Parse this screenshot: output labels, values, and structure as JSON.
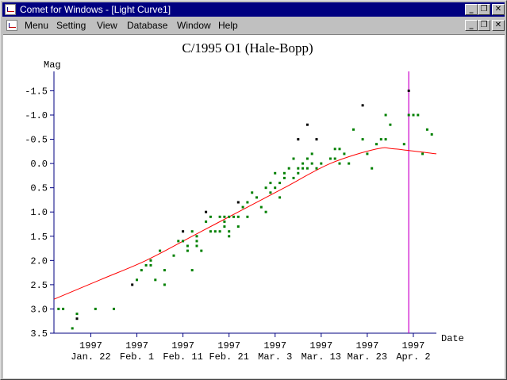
{
  "window": {
    "title": "Comet for Windows - [Light Curve1]",
    "menu": [
      "Menu",
      "Setting",
      "View",
      "Database",
      "Window",
      "Help"
    ]
  },
  "colors": {
    "curve": "#ff0000",
    "marker": "#cc00cc",
    "points_green": "#008000",
    "points_black": "#000000",
    "axis": "#000080"
  },
  "chart_data": {
    "type": "scatter",
    "title": "C/1995 O1 (Hale-Bopp)",
    "ylabel": "Mag",
    "xlabel": "Date",
    "y_inverted": true,
    "ylim": [
      3.5,
      -1.9
    ],
    "xlim": [
      "1997-01-14",
      "1997-04-07"
    ],
    "y_ticks": [
      -1.5,
      -1.0,
      -0.5,
      0.0,
      0.5,
      1.0,
      1.5,
      2.0,
      2.5,
      3.0,
      3.5
    ],
    "y_tick_labels": [
      "-1.5",
      "-1.0",
      "-0.5",
      "0.0",
      "0.5",
      "1.0",
      "1.5",
      "2.0",
      "2.5",
      "3.0",
      "3.5"
    ],
    "x_ticks": [
      "1997-01-22",
      "1997-02-01",
      "1997-02-11",
      "1997-02-21",
      "1997-03-03",
      "1997-03-13",
      "1997-03-23",
      "1997-04-02"
    ],
    "x_tick_year_labels": [
      "1997",
      "1997",
      "1997",
      "1997",
      "1997",
      "1997",
      "1997",
      "1997"
    ],
    "x_tick_date_labels": [
      "Jan. 22",
      "Feb. 1",
      "Feb. 11",
      "Feb. 21",
      "Mar. 3",
      "Mar. 13",
      "Mar. 23",
      "Apr. 2"
    ],
    "marker_date": "1997-04-01",
    "series": [
      {
        "color": "green",
        "points": [
          [
            "1997-01-15",
            3.0
          ],
          [
            "1997-01-16",
            3.0
          ],
          [
            "1997-01-18",
            3.4
          ],
          [
            "1997-01-19",
            3.1
          ],
          [
            "1997-01-23",
            3.0
          ],
          [
            "1997-01-27",
            3.0
          ],
          [
            "1997-02-01",
            2.4
          ],
          [
            "1997-02-02",
            2.2
          ],
          [
            "1997-02-03",
            2.1
          ],
          [
            "1997-02-04",
            2.1
          ],
          [
            "1997-02-04",
            2.0
          ],
          [
            "1997-02-05",
            2.4
          ],
          [
            "1997-02-06",
            1.8
          ],
          [
            "1997-02-07",
            2.5
          ],
          [
            "1997-02-07",
            2.2
          ],
          [
            "1997-02-09",
            1.9
          ],
          [
            "1997-02-10",
            1.6
          ],
          [
            "1997-02-11",
            1.6
          ],
          [
            "1997-02-12",
            1.8
          ],
          [
            "1997-02-12",
            1.7
          ],
          [
            "1997-02-13",
            2.2
          ],
          [
            "1997-02-13",
            1.4
          ],
          [
            "1997-02-14",
            1.5
          ],
          [
            "1997-02-14",
            1.6
          ],
          [
            "1997-02-14",
            1.7
          ],
          [
            "1997-02-15",
            1.8
          ],
          [
            "1997-02-16",
            1.2
          ],
          [
            "1997-02-17",
            1.4
          ],
          [
            "1997-02-17",
            1.1
          ],
          [
            "1997-02-18",
            1.4
          ],
          [
            "1997-02-19",
            1.4
          ],
          [
            "1997-02-19",
            1.1
          ],
          [
            "1997-02-20",
            1.1
          ],
          [
            "1997-02-20",
            1.2
          ],
          [
            "1997-02-20",
            1.3
          ],
          [
            "1997-02-21",
            1.5
          ],
          [
            "1997-02-21",
            1.4
          ],
          [
            "1997-02-21",
            1.1
          ],
          [
            "1997-02-22",
            1.1
          ],
          [
            "1997-02-23",
            1.1
          ],
          [
            "1997-02-23",
            1.3
          ],
          [
            "1997-02-24",
            0.9
          ],
          [
            "1997-02-25",
            1.1
          ],
          [
            "1997-02-25",
            0.8
          ],
          [
            "1997-02-26",
            0.6
          ],
          [
            "1997-02-27",
            0.7
          ],
          [
            "1997-02-28",
            0.9
          ],
          [
            "1997-03-01",
            1.0
          ],
          [
            "1997-03-01",
            0.5
          ],
          [
            "1997-03-02",
            0.6
          ],
          [
            "1997-03-02",
            0.4
          ],
          [
            "1997-03-03",
            0.5
          ],
          [
            "1997-03-03",
            0.2
          ],
          [
            "1997-03-04",
            0.4
          ],
          [
            "1997-03-04",
            0.7
          ],
          [
            "1997-03-05",
            0.2
          ],
          [
            "1997-03-05",
            0.3
          ],
          [
            "1997-03-06",
            0.1
          ],
          [
            "1997-03-07",
            -0.1
          ],
          [
            "1997-03-07",
            0.3
          ],
          [
            "1997-03-08",
            0.2
          ],
          [
            "1997-03-08",
            0.1
          ],
          [
            "1997-03-09",
            0.1
          ],
          [
            "1997-03-09",
            0.0
          ],
          [
            "1997-03-10",
            -0.1
          ],
          [
            "1997-03-10",
            0.1
          ],
          [
            "1997-03-11",
            -0.2
          ],
          [
            "1997-03-11",
            0.0
          ],
          [
            "1997-03-12",
            0.1
          ],
          [
            "1997-03-13",
            0.0
          ],
          [
            "1997-03-15",
            -0.1
          ],
          [
            "1997-03-16",
            -0.1
          ],
          [
            "1997-03-16",
            -0.3
          ],
          [
            "1997-03-17",
            -0.3
          ],
          [
            "1997-03-17",
            0.0
          ],
          [
            "1997-03-18",
            -0.2
          ],
          [
            "1997-03-19",
            0.0
          ],
          [
            "1997-03-20",
            -0.7
          ],
          [
            "1997-03-22",
            -0.5
          ],
          [
            "1997-03-23",
            -0.2
          ],
          [
            "1997-03-24",
            0.1
          ],
          [
            "1997-03-25",
            -0.4
          ],
          [
            "1997-03-26",
            -0.5
          ],
          [
            "1997-03-27",
            -1.0
          ],
          [
            "1997-03-27",
            -0.5
          ],
          [
            "1997-03-28",
            -0.8
          ],
          [
            "1997-03-31",
            -0.4
          ],
          [
            "1997-04-01",
            -1.0
          ],
          [
            "1997-04-02",
            -1.0
          ],
          [
            "1997-04-03",
            -1.0
          ],
          [
            "1997-04-04",
            -0.2
          ],
          [
            "1997-04-05",
            -0.7
          ],
          [
            "1997-04-06",
            -0.6
          ]
        ]
      },
      {
        "color": "black",
        "points": [
          [
            "1997-01-19",
            3.2
          ],
          [
            "1997-01-31",
            2.5
          ],
          [
            "1997-02-11",
            1.4
          ],
          [
            "1997-02-16",
            1.0
          ],
          [
            "1997-02-23",
            0.8
          ],
          [
            "1997-03-08",
            -0.5
          ],
          [
            "1997-03-10",
            -0.8
          ],
          [
            "1997-03-12",
            -0.5
          ],
          [
            "1997-03-22",
            -1.2
          ],
          [
            "1997-04-01",
            -1.5
          ]
        ]
      }
    ],
    "fit_curve": [
      [
        "1997-01-14",
        2.8
      ],
      [
        "1997-01-24",
        2.4
      ],
      [
        "1997-02-03",
        2.0
      ],
      [
        "1997-02-13",
        1.5
      ],
      [
        "1997-02-23",
        1.0
      ],
      [
        "1997-03-05",
        0.5
      ],
      [
        "1997-03-15",
        0.0
      ],
      [
        "1997-03-25",
        -0.3
      ],
      [
        "1997-03-29",
        -0.3
      ],
      [
        "1997-04-07",
        -0.2
      ]
    ]
  }
}
